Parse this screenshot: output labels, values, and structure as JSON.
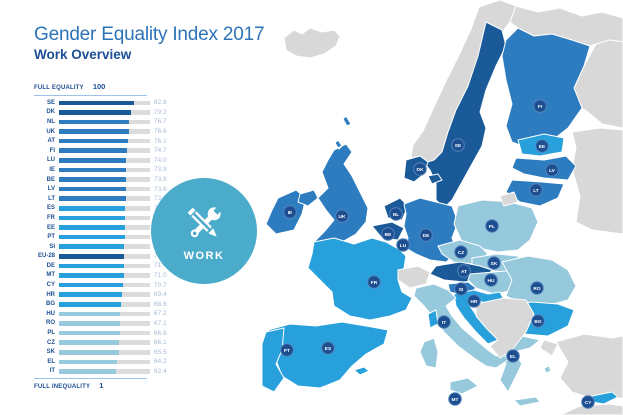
{
  "header": {
    "title": "Gender Equality Index 2017",
    "subtitle": "Work Overview"
  },
  "scale": {
    "top_label": "FULL EQUALITY",
    "top_value": "100",
    "bottom_label": "FULL INEQUALITY",
    "bottom_value": "1"
  },
  "badge": {
    "label": "WORK",
    "color": "#4BABCA",
    "icon": "wrench-pencil-icon"
  },
  "colors": {
    "navy": "#1B5A99",
    "steel": "#2E7CC0",
    "cyan": "#27A0DC",
    "pale": "#97C9DD",
    "non_eu": "#D8D8D8",
    "track": "#DCDCDC",
    "label_circle": "#1D4F90",
    "label_circle_ring": "#5585BC",
    "code_text": "#1D4E94",
    "value_text": "#A5BAD5",
    "title_text": "#2D73B8"
  },
  "chart_data": {
    "type": "bar",
    "title": "Gender Equality Index 2017",
    "subtitle": "Work Overview",
    "xlim": [
      1,
      100
    ],
    "axis_top": {
      "label": "FULL EQUALITY",
      "value": 100
    },
    "axis_bottom": {
      "label": "FULL INEQUALITY",
      "value": 1
    },
    "legend_position": "none",
    "grid": false,
    "categories": [
      "SE",
      "DK",
      "NL",
      "UK",
      "AT",
      "FI",
      "LU",
      "IE",
      "BE",
      "LV",
      "LT",
      "ES",
      "FR",
      "EE",
      "PT",
      "SI",
      "EU-28",
      "DE",
      "MT",
      "CY",
      "HR",
      "BG",
      "HU",
      "RO",
      "PL",
      "CZ",
      "SK",
      "EL",
      "IT"
    ],
    "values": [
      82.6,
      79.2,
      76.7,
      76.6,
      76.1,
      74.7,
      74.0,
      73.9,
      73.8,
      73.6,
      73.2,
      72.4,
      72.1,
      72.1,
      72.0,
      71.8,
      71.5,
      71.4,
      71.0,
      70.7,
      69.4,
      68.6,
      67.2,
      67.1,
      66.8,
      66.1,
      65.5,
      64.2,
      62.4
    ],
    "display_values": [
      "82.6",
      "79.2",
      "76.7",
      "76.6",
      "76.1",
      "74.7",
      "74.0",
      "73.9",
      "73.8",
      "73.6",
      "73.2",
      "72.4",
      "72.1",
      "72.1",
      "72.0",
      "71.8",
      "71.5",
      "71.4",
      "71.0",
      "70.7",
      "69.4",
      "68.6",
      "67.2",
      "67.1",
      "66.8",
      "66.1",
      "65.5",
      "64.2",
      "62.4"
    ],
    "bar_color_groups": [
      "navy",
      "navy",
      "steel",
      "steel",
      "steel",
      "steel",
      "steel",
      "steel",
      "steel",
      "steel",
      "steel",
      "cyan",
      "cyan",
      "cyan",
      "cyan",
      "cyan",
      "navy",
      "cyan",
      "cyan",
      "cyan",
      "cyan",
      "cyan",
      "pale",
      "pale",
      "pale",
      "pale",
      "pale",
      "pale",
      "pale"
    ]
  },
  "map": {
    "countries": [
      {
        "code": "SE",
        "color_group": "navy"
      },
      {
        "code": "FI",
        "color_group": "steel"
      },
      {
        "code": "EE",
        "color_group": "cyan"
      },
      {
        "code": "LV",
        "color_group": "steel"
      },
      {
        "code": "LT",
        "color_group": "steel"
      },
      {
        "code": "DK",
        "color_group": "navy"
      },
      {
        "code": "IE",
        "color_group": "steel"
      },
      {
        "code": "UK",
        "color_group": "steel"
      },
      {
        "code": "NL",
        "color_group": "navy"
      },
      {
        "code": "BE",
        "color_group": "navy"
      },
      {
        "code": "LU",
        "color_group": "navy"
      },
      {
        "code": "DE",
        "color_group": "steel"
      },
      {
        "code": "PL",
        "color_group": "pale"
      },
      {
        "code": "CZ",
        "color_group": "pale"
      },
      {
        "code": "SK",
        "color_group": "pale"
      },
      {
        "code": "AT",
        "color_group": "navy"
      },
      {
        "code": "HU",
        "color_group": "pale"
      },
      {
        "code": "SI",
        "color_group": "steel"
      },
      {
        "code": "HR",
        "color_group": "cyan"
      },
      {
        "code": "RO",
        "color_group": "pale"
      },
      {
        "code": "BG",
        "color_group": "cyan"
      },
      {
        "code": "EL",
        "color_group": "pale"
      },
      {
        "code": "IT",
        "color_group": "pale"
      },
      {
        "code": "FR",
        "color_group": "cyan"
      },
      {
        "code": "ES",
        "color_group": "cyan"
      },
      {
        "code": "PT",
        "color_group": "cyan"
      },
      {
        "code": "MT",
        "color_group": "cyan"
      },
      {
        "code": "CY",
        "color_group": "cyan"
      }
    ]
  }
}
